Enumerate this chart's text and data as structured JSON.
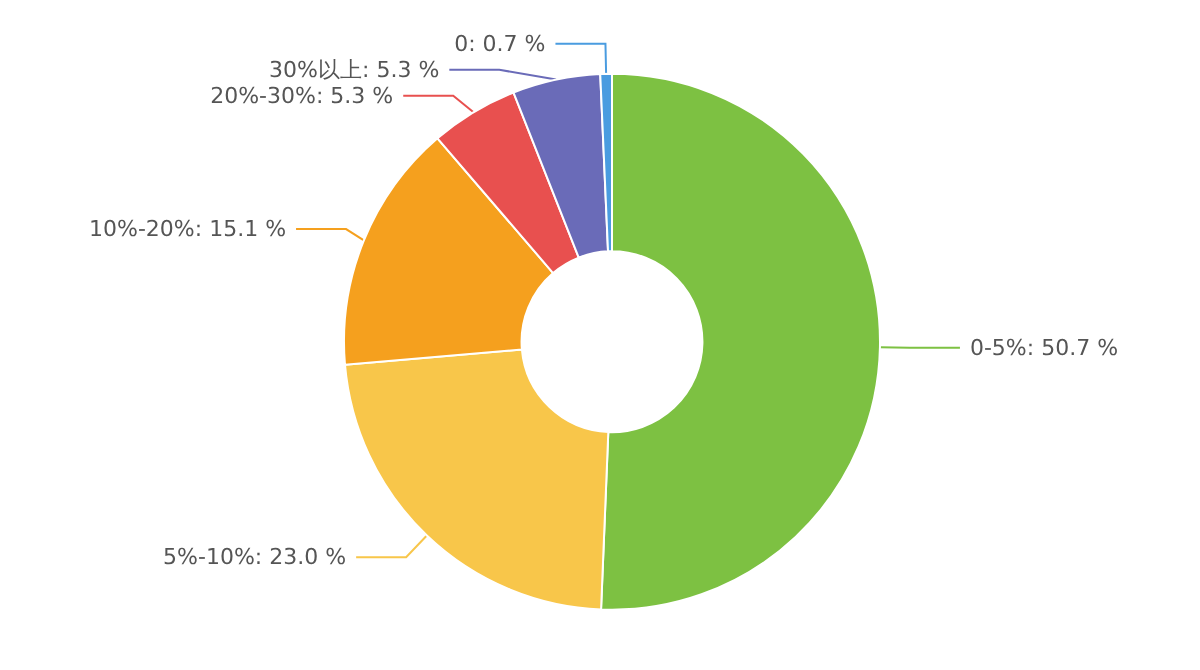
{
  "chart_data": {
    "type": "donut",
    "categories": [
      "0-5%",
      "5%-10%",
      "10%-20%",
      "20%-30%",
      "30%以上",
      "0"
    ],
    "values": [
      50.7,
      23.0,
      15.1,
      5.3,
      5.3,
      0.7
    ],
    "value_labels": [
      "50.7 %",
      "23.0 %",
      "15.1 %",
      "5.3 %",
      "5.3 %",
      "0.7 %"
    ],
    "colors": [
      "#7dc142",
      "#f8c64a",
      "#f5a01e",
      "#e8504f",
      "#6a6bb8",
      "#4a9ce0"
    ],
    "legend": false
  }
}
